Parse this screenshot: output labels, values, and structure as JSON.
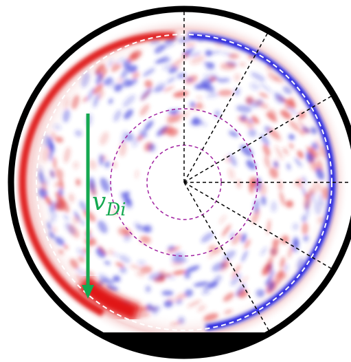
{
  "annotation": {
    "symbol": "v",
    "subscript": "Di"
  }
}
